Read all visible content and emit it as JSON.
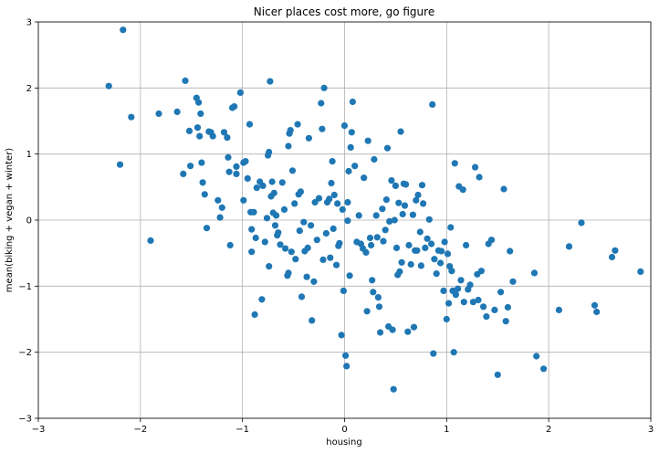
{
  "chart_data": {
    "type": "scatter",
    "title": "Nicer places cost more, go figure",
    "xlabel": "housing",
    "ylabel": "mean(biking + vegan + winter)",
    "xlim": [
      -3,
      3
    ],
    "ylim": [
      -3,
      3
    ],
    "xticks": [
      -3,
      -2,
      -1,
      0,
      1,
      2,
      3
    ],
    "yticks": [
      -3,
      -2,
      -1,
      0,
      1,
      2,
      3
    ],
    "xtick_labels": [
      "−3",
      "−2",
      "−1",
      "0",
      "1",
      "2",
      "3"
    ],
    "ytick_labels": [
      "−3",
      "−2",
      "−1",
      "0",
      "1",
      "2",
      "3"
    ],
    "grid": true,
    "marker_color": "#1f77b4",
    "points": [
      [
        -2.17,
        2.88
      ],
      [
        -2.31,
        2.03
      ],
      [
        -2.09,
        1.56
      ],
      [
        -2.2,
        0.84
      ],
      [
        -1.9,
        -0.31
      ],
      [
        -1.82,
        1.61
      ],
      [
        -1.64,
        1.64
      ],
      [
        -1.56,
        2.11
      ],
      [
        -1.58,
        0.7
      ],
      [
        -1.52,
        1.35
      ],
      [
        -1.51,
        0.82
      ],
      [
        -1.45,
        1.85
      ],
      [
        -1.43,
        1.78
      ],
      [
        -1.44,
        1.4
      ],
      [
        -1.41,
        1.61
      ],
      [
        -1.42,
        1.27
      ],
      [
        -1.4,
        0.87
      ],
      [
        -1.39,
        0.57
      ],
      [
        -1.37,
        0.39
      ],
      [
        -1.35,
        -0.12
      ],
      [
        -1.33,
        1.34
      ],
      [
        -1.31,
        1.33
      ],
      [
        -1.29,
        1.27
      ],
      [
        -1.24,
        0.3
      ],
      [
        -1.22,
        0.04
      ],
      [
        -1.2,
        0.19
      ],
      [
        -1.18,
        1.33
      ],
      [
        -1.15,
        1.25
      ],
      [
        -1.14,
        0.95
      ],
      [
        -1.13,
        0.73
      ],
      [
        -1.12,
        -0.38
      ],
      [
        -1.1,
        1.7
      ],
      [
        -1.08,
        1.72
      ],
      [
        -1.06,
        0.81
      ],
      [
        -1.06,
        0.7
      ],
      [
        -1.02,
        1.93
      ],
      [
        -0.99,
        0.3
      ],
      [
        -0.99,
        0.87
      ],
      [
        -0.97,
        0.89
      ],
      [
        -0.95,
        0.63
      ],
      [
        -0.93,
        1.45
      ],
      [
        -0.92,
        0.12
      ],
      [
        -0.91,
        -0.14
      ],
      [
        -0.91,
        -0.48
      ],
      [
        -0.89,
        0.12
      ],
      [
        -0.88,
        -1.43
      ],
      [
        -0.87,
        -0.27
      ],
      [
        -0.86,
        0.49
      ],
      [
        -0.83,
        0.58
      ],
      [
        -0.81,
        -1.2
      ],
      [
        -0.8,
        0.52
      ],
      [
        -0.78,
        -0.33
      ],
      [
        -0.76,
        0.03
      ],
      [
        -0.75,
        0.98
      ],
      [
        -0.74,
        1.03
      ],
      [
        -0.73,
        2.1
      ],
      [
        -0.74,
        -0.7
      ],
      [
        -0.72,
        0.36
      ],
      [
        -0.71,
        0.58
      ],
      [
        -0.7,
        0.11
      ],
      [
        -0.69,
        0.41
      ],
      [
        -0.68,
        -0.08
      ],
      [
        -0.67,
        0.07
      ],
      [
        -0.66,
        -0.23
      ],
      [
        -0.65,
        -0.19
      ],
      [
        -0.63,
        -0.37
      ],
      [
        -0.61,
        0.57
      ],
      [
        -0.59,
        0.16
      ],
      [
        -0.58,
        -0.43
      ],
      [
        -0.56,
        -0.84
      ],
      [
        -0.55,
        -0.8
      ],
      [
        -0.55,
        1.12
      ],
      [
        -0.54,
        1.31
      ],
      [
        -0.53,
        1.36
      ],
      [
        -0.52,
        -0.48
      ],
      [
        -0.51,
        0.75
      ],
      [
        -0.49,
        0.25
      ],
      [
        -0.48,
        -0.59
      ],
      [
        -0.46,
        1.45
      ],
      [
        -0.45,
        0.39
      ],
      [
        -0.44,
        -0.16
      ],
      [
        -0.43,
        0.43
      ],
      [
        -0.42,
        -1.16
      ],
      [
        -0.4,
        -0.03
      ],
      [
        -0.39,
        -0.47
      ],
      [
        -0.37,
        -0.86
      ],
      [
        -0.36,
        -0.42
      ],
      [
        -0.35,
        1.24
      ],
      [
        -0.33,
        -0.08
      ],
      [
        -0.32,
        -1.52
      ],
      [
        -0.3,
        -0.93
      ],
      [
        -0.29,
        0.27
      ],
      [
        -0.27,
        -0.3
      ],
      [
        -0.25,
        0.33
      ],
      [
        -0.23,
        1.77
      ],
      [
        -0.22,
        1.38
      ],
      [
        -0.21,
        -0.6
      ],
      [
        -0.2,
        2.0
      ],
      [
        -0.18,
        -0.2
      ],
      [
        -0.17,
        0.27
      ],
      [
        -0.15,
        0.32
      ],
      [
        -0.14,
        -0.57
      ],
      [
        -0.13,
        0.56
      ],
      [
        -0.12,
        0.89
      ],
      [
        -0.11,
        -0.13
      ],
      [
        -0.1,
        0.38
      ],
      [
        -0.08,
        -0.68
      ],
      [
        -0.07,
        0.25
      ],
      [
        -0.06,
        -0.39
      ],
      [
        -0.05,
        -0.35
      ],
      [
        -0.03,
        -1.74
      ],
      [
        -0.02,
        0.16
      ],
      [
        -0.01,
        -1.07
      ],
      [
        0.0,
        1.43
      ],
      [
        0.01,
        -2.05
      ],
      [
        0.02,
        -2.21
      ],
      [
        0.03,
        0.27
      ],
      [
        0.03,
        -0.01
      ],
      [
        0.04,
        0.74
      ],
      [
        0.05,
        -0.84
      ],
      [
        0.06,
        1.1
      ],
      [
        0.07,
        1.33
      ],
      [
        0.08,
        1.79
      ],
      [
        0.1,
        0.82
      ],
      [
        0.12,
        -0.33
      ],
      [
        0.14,
        0.07
      ],
      [
        0.16,
        -0.36
      ],
      [
        0.18,
        -0.43
      ],
      [
        0.19,
        0.64
      ],
      [
        0.21,
        -0.49
      ],
      [
        0.22,
        -1.38
      ],
      [
        0.23,
        1.2
      ],
      [
        0.25,
        -0.27
      ],
      [
        0.26,
        -0.38
      ],
      [
        0.27,
        -0.91
      ],
      [
        0.28,
        -1.09
      ],
      [
        0.29,
        0.92
      ],
      [
        0.31,
        0.07
      ],
      [
        0.32,
        -0.26
      ],
      [
        0.33,
        -1.17
      ],
      [
        0.34,
        -1.31
      ],
      [
        0.35,
        -1.7
      ],
      [
        0.37,
        0.17
      ],
      [
        0.38,
        -0.32
      ],
      [
        0.4,
        -0.15
      ],
      [
        0.41,
        0.31
      ],
      [
        0.42,
        1.09
      ],
      [
        0.43,
        -1.61
      ],
      [
        0.44,
        -0.02
      ],
      [
        0.46,
        0.6
      ],
      [
        0.47,
        -1.66
      ],
      [
        0.48,
        -2.56
      ],
      [
        0.49,
        0.0
      ],
      [
        0.5,
        0.52
      ],
      [
        0.51,
        -0.42
      ],
      [
        0.52,
        -0.83
      ],
      [
        0.53,
        0.26
      ],
      [
        0.54,
        -0.78
      ],
      [
        0.55,
        1.34
      ],
      [
        0.56,
        -0.64
      ],
      [
        0.57,
        0.09
      ],
      [
        0.58,
        0.55
      ],
      [
        0.59,
        0.22
      ],
      [
        0.6,
        0.54
      ],
      [
        0.62,
        -1.69
      ],
      [
        0.63,
        -0.38
      ],
      [
        0.65,
        -0.67
      ],
      [
        0.67,
        0.08
      ],
      [
        0.68,
        -1.62
      ],
      [
        0.69,
        -0.46
      ],
      [
        0.7,
        0.3
      ],
      [
        0.71,
        -0.46
      ],
      [
        0.72,
        0.38
      ],
      [
        0.74,
        -0.18
      ],
      [
        0.75,
        -0.69
      ],
      [
        0.76,
        0.53
      ],
      [
        0.77,
        0.25
      ],
      [
        0.79,
        -0.42
      ],
      [
        0.81,
        -0.28
      ],
      [
        0.83,
        0.01
      ],
      [
        0.85,
        -0.36
      ],
      [
        0.86,
        1.75
      ],
      [
        0.87,
        -2.02
      ],
      [
        0.88,
        -0.59
      ],
      [
        0.9,
        -0.81
      ],
      [
        0.92,
        -0.46
      ],
      [
        0.94,
        -0.65
      ],
      [
        0.95,
        -0.47
      ],
      [
        0.97,
        -1.07
      ],
      [
        0.98,
        -0.33
      ],
      [
        1.0,
        -1.5
      ],
      [
        1.01,
        -0.51
      ],
      [
        1.02,
        -1.26
      ],
      [
        1.03,
        -0.7
      ],
      [
        1.04,
        -0.11
      ],
      [
        1.05,
        -0.77
      ],
      [
        1.06,
        -1.07
      ],
      [
        1.07,
        -2.0
      ],
      [
        1.08,
        0.86
      ],
      [
        1.09,
        -1.13
      ],
      [
        1.11,
        -1.04
      ],
      [
        1.12,
        0.51
      ],
      [
        1.14,
        -0.91
      ],
      [
        1.16,
        0.46
      ],
      [
        1.17,
        -1.24
      ],
      [
        1.19,
        -0.38
      ],
      [
        1.21,
        -1.05
      ],
      [
        1.23,
        -0.98
      ],
      [
        1.26,
        -1.24
      ],
      [
        1.28,
        0.8
      ],
      [
        1.3,
        -0.82
      ],
      [
        1.31,
        -1.21
      ],
      [
        1.32,
        0.65
      ],
      [
        1.34,
        -0.77
      ],
      [
        1.36,
        -1.31
      ],
      [
        1.39,
        -1.46
      ],
      [
        1.41,
        -0.36
      ],
      [
        1.44,
        -0.3
      ],
      [
        1.47,
        -1.36
      ],
      [
        1.5,
        -2.34
      ],
      [
        1.53,
        -1.09
      ],
      [
        1.56,
        0.47
      ],
      [
        1.58,
        -1.53
      ],
      [
        1.6,
        -1.32
      ],
      [
        1.62,
        -0.47
      ],
      [
        1.65,
        -0.93
      ],
      [
        1.86,
        -0.8
      ],
      [
        1.88,
        -2.06
      ],
      [
        1.95,
        -2.25
      ],
      [
        2.1,
        -1.36
      ],
      [
        2.2,
        -0.4
      ],
      [
        2.32,
        -0.04
      ],
      [
        2.45,
        -1.29
      ],
      [
        2.47,
        -1.39
      ],
      [
        2.62,
        -0.56
      ],
      [
        2.65,
        -0.46
      ],
      [
        2.9,
        -0.78
      ]
    ]
  }
}
